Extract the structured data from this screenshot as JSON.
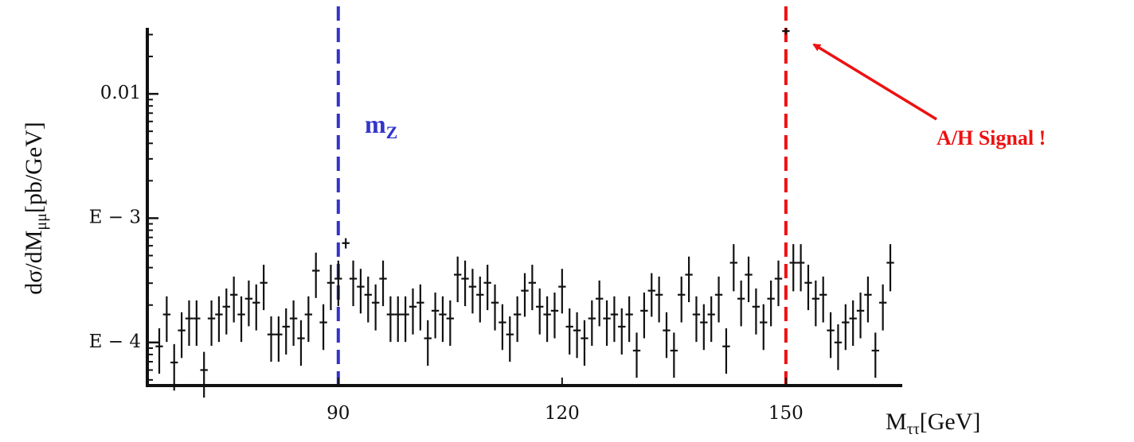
{
  "chart_data": {
    "type": "errorbar",
    "xlabel": {
      "main": "M",
      "sub": "ττ",
      "unit": "[GeV]"
    },
    "ylabel": {
      "main": "dσ/dM",
      "sub": "μμ",
      "unit": "[pb/GeV]"
    },
    "xlim": [
      64.4,
      165.6
    ],
    "xticks": [
      90,
      120,
      150
    ],
    "ylim": [
      4.5e-05,
      0.034
    ],
    "log_y": true,
    "yticks": [
      {
        "value": 0.01,
        "label": "0.01"
      },
      {
        "value": 0.001,
        "label": "E − 3"
      },
      {
        "value": 0.0001,
        "label": "E − 4"
      }
    ],
    "yminorticks": [
      5e-05,
      6e-05,
      7e-05,
      8e-05,
      9e-05,
      0.0002,
      0.0003,
      0.0004,
      0.0005,
      0.0006,
      0.0007,
      0.0008,
      0.0009,
      0.002,
      0.003,
      0.004,
      0.005,
      0.006,
      0.007,
      0.008,
      0.009,
      0.02,
      0.03
    ],
    "color": "#111111",
    "xerr": 0.5,
    "x": [
      66,
      67,
      68,
      69,
      70,
      71,
      72,
      73,
      74,
      75,
      76,
      77,
      78,
      79,
      80,
      81,
      82,
      83,
      84,
      85,
      86,
      87,
      88,
      89,
      90,
      91,
      92,
      93,
      94,
      95,
      96,
      97,
      98,
      99,
      100,
      101,
      102,
      103,
      104,
      105,
      106,
      107,
      108,
      109,
      110,
      111,
      112,
      113,
      114,
      115,
      116,
      117,
      118,
      119,
      120,
      121,
      122,
      123,
      124,
      125,
      126,
      127,
      128,
      129,
      130,
      131,
      132,
      133,
      134,
      135,
      136,
      137,
      138,
      139,
      140,
      141,
      142,
      143,
      144,
      145,
      146,
      147,
      148,
      149,
      150,
      151,
      152,
      153,
      154,
      155,
      156,
      157,
      158,
      159,
      160,
      161,
      162,
      163,
      164
    ],
    "values": [
      9.3e-05,
      0.000168,
      6.9e-05,
      0.000125,
      0.000156,
      0.000156,
      6e-05,
      0.000156,
      0.000168,
      0.000194,
      0.000242,
      0.000168,
      0.000225,
      0.000209,
      0.000302,
      0.000116,
      0.000116,
      0.000134,
      0.000156,
      0.000108,
      0.000168,
      0.000378,
      0.000145,
      0.000302,
      0.000326,
      0.00063,
      0.000326,
      0.000281,
      0.000242,
      0.000209,
      0.000326,
      0.000168,
      0.000168,
      0.000168,
      0.000194,
      0.000209,
      0.000108,
      0.00018,
      0.000168,
      0.000156,
      0.000351,
      0.000326,
      0.000281,
      0.000242,
      0.000302,
      0.000209,
      0.000145,
      0.000116,
      0.000168,
      0.000261,
      0.000302,
      0.000194,
      0.000168,
      0.00018,
      0.000281,
      0.000134,
      0.000125,
      0.000108,
      0.000156,
      0.000225,
      0.000156,
      0.000168,
      0.000134,
      0.000168,
      8.6e-05,
      0.00018,
      0.000261,
      0.000242,
      0.000125,
      8.6e-05,
      0.000242,
      0.000351,
      0.000168,
      0.000145,
      0.000168,
      0.000242,
      9.3e-05,
      0.000438,
      0.000225,
      0.000351,
      0.000194,
      0.000145,
      0.000225,
      0.000326,
      0.032,
      0.000438,
      0.000438,
      0.000302,
      0.000225,
      0.000242,
      0.000125,
      0.0001,
      0.000145,
      0.000156,
      0.00018,
      0.000242,
      8.6e-05,
      0.000209,
      0.000438
    ],
    "errors": [
      3.7e-05,
      6.7e-05,
      2.8e-05,
      5e-05,
      6.2e-05,
      6.2e-05,
      2.4e-05,
      6.2e-05,
      6.7e-05,
      7.8e-05,
      9.7e-05,
      6.7e-05,
      9e-05,
      8.4e-05,
      0.00012,
      4.6e-05,
      4.6e-05,
      5.4e-05,
      6.2e-05,
      4.3e-05,
      6.7e-05,
      0.00015,
      5.8e-05,
      0.00012,
      0.00013,
      6e-05,
      0.00013,
      0.00011,
      9.7e-05,
      8.4e-05,
      0.00013,
      6.7e-05,
      6.7e-05,
      6.7e-05,
      7.8e-05,
      8.4e-05,
      4.3e-05,
      7.2e-05,
      6.7e-05,
      6.2e-05,
      0.00014,
      0.00013,
      0.00011,
      9.7e-05,
      0.00012,
      8.4e-05,
      5.8e-05,
      4.6e-05,
      6.7e-05,
      0.0001,
      0.00012,
      7.8e-05,
      6.7e-05,
      7.2e-05,
      0.00011,
      5.4e-05,
      5e-05,
      4.3e-05,
      6.2e-05,
      9e-05,
      6.2e-05,
      6.7e-05,
      5.4e-05,
      6.7e-05,
      3.4e-05,
      7.2e-05,
      0.0001,
      9.7e-05,
      5e-05,
      3.4e-05,
      9.7e-05,
      0.00014,
      6.7e-05,
      5.8e-05,
      6.7e-05,
      9.7e-05,
      3.7e-05,
      0.00018,
      9e-05,
      0.00014,
      7.8e-05,
      5.8e-05,
      9e-05,
      0.00013,
      0.002,
      0.00018,
      0.00018,
      0.00012,
      9e-05,
      9.7e-05,
      5e-05,
      4e-05,
      5.8e-05,
      6.2e-05,
      7.2e-05,
      9.7e-05,
      3.4e-05,
      8.4e-05,
      0.00018
    ],
    "vlines": [
      {
        "x": 90,
        "color": "#3333cc"
      },
      {
        "x": 150,
        "color": "#ee1111"
      }
    ],
    "annotations": [
      {
        "text": "m",
        "sub": "Z",
        "color": "#3333cc"
      },
      {
        "text": "A/H Signal !",
        "color": "#ee1111"
      }
    ]
  }
}
